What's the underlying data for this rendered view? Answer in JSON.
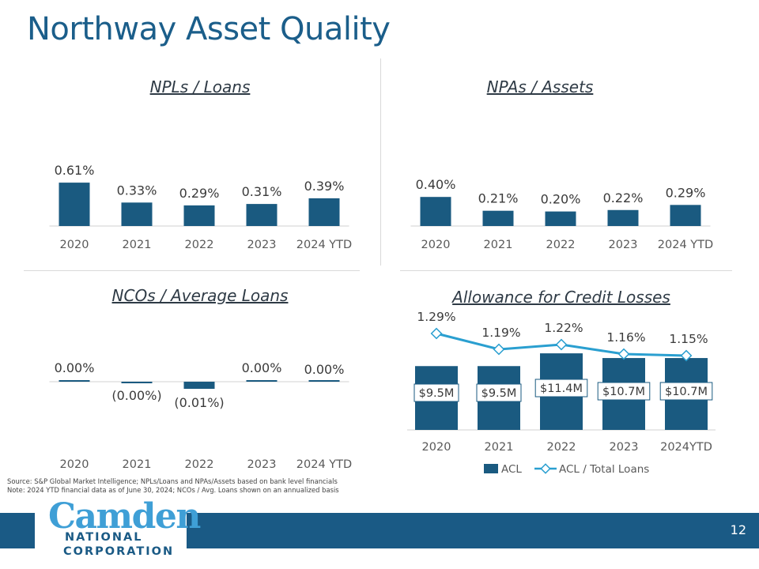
{
  "page": {
    "title": "Northway Asset Quality",
    "page_number": "12",
    "footnotes": [
      "Source: S&P Global Market Intelligence; NPLs/Loans and NPAs/Assets based on bank level financials",
      "Note: 2024 YTD financial data as of June 30, 2024; NCOs / Avg. Loans shown on an annualized basis"
    ],
    "logo": {
      "line1": "Camden",
      "line2": "NATIONAL",
      "line3": "CORPORATION"
    }
  },
  "colors": {
    "bar": "#1a5a80",
    "line": "#2a9fd0",
    "title": "#1b5e8a",
    "brand_blue": "#1a5a85",
    "brand_light": "#3f9fd6",
    "text": "#3a3a3a"
  },
  "chart_data": [
    {
      "id": "npl",
      "type": "bar",
      "title": "NPLs / Loans",
      "categories": [
        "2020",
        "2021",
        "2022",
        "2023",
        "2024 YTD"
      ],
      "values": [
        0.61,
        0.33,
        0.29,
        0.31,
        0.39
      ],
      "labels": [
        "0.61%",
        "0.33%",
        "0.29%",
        "0.31%",
        "0.39%"
      ],
      "unit": "%"
    },
    {
      "id": "npa",
      "type": "bar",
      "title": "NPAs / Assets",
      "categories": [
        "2020",
        "2021",
        "2022",
        "2023",
        "2024 YTD"
      ],
      "values": [
        0.4,
        0.21,
        0.2,
        0.22,
        0.29
      ],
      "labels": [
        "0.40%",
        "0.21%",
        "0.20%",
        "0.22%",
        "0.29%"
      ],
      "unit": "%"
    },
    {
      "id": "nco",
      "type": "bar",
      "title": "NCOs / Average Loans",
      "categories": [
        "2020",
        "2021",
        "2022",
        "2023",
        "2024 YTD"
      ],
      "values": [
        0.002,
        -0.001,
        -0.01,
        0.001,
        0.0
      ],
      "labels": [
        "0.00%",
        "(0.00%)",
        "(0.01%)",
        "0.00%",
        "0.00%"
      ],
      "unit": "%"
    },
    {
      "id": "acl",
      "type": "bar+line",
      "title": "Allowance for Credit Losses",
      "categories": [
        "2020",
        "2021",
        "2022",
        "2023",
        "2024YTD"
      ],
      "series": [
        {
          "name": "ACL",
          "type": "bar",
          "values": [
            9.5,
            9.5,
            11.4,
            10.7,
            10.7
          ],
          "labels": [
            "$9.5M",
            "$9.5M",
            "$11.4M",
            "$10.7M",
            "$10.7M"
          ],
          "unit": "$M"
        },
        {
          "name": "ACL / Total Loans",
          "type": "line",
          "values": [
            1.29,
            1.19,
            1.22,
            1.16,
            1.15
          ],
          "labels": [
            "1.29%",
            "1.19%",
            "1.22%",
            "1.16%",
            "1.15%"
          ],
          "unit": "%"
        }
      ],
      "legend": "bottom"
    }
  ]
}
